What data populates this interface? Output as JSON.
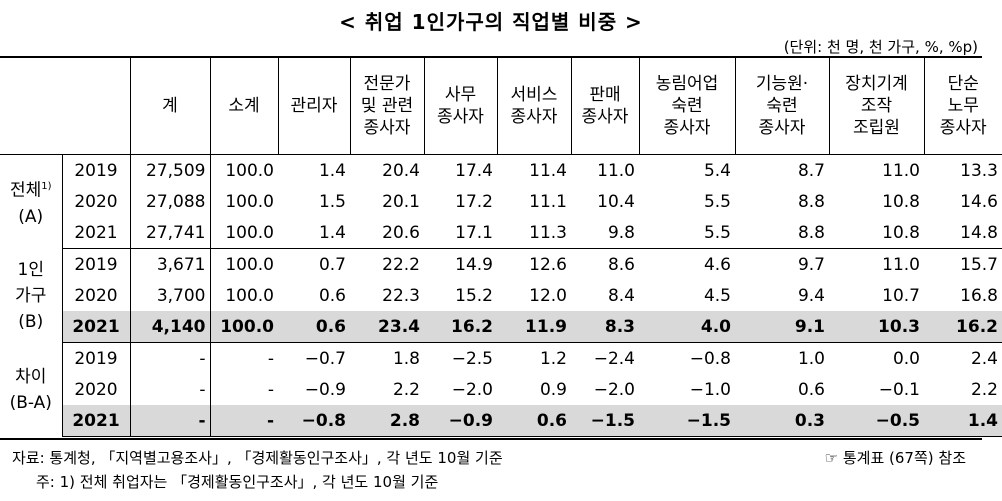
{
  "title": "< 취업 1인가구의 직업별 비중 >",
  "unit": "(단위: 천 명, 천 가구, %, %p)",
  "headers": [
    "계",
    "소계",
    "관리자",
    "전문가\n및 관련\n종사자",
    "사무\n종사자",
    "서비스\n종사자",
    "판매\n종사자",
    "농림어업\n숙련\n종사자",
    "기능원·\n숙련\n종사자",
    "장치기계\n조작\n조립원",
    "단순\n노무\n종사자"
  ],
  "groups": [
    {
      "label_line1": "전체",
      "label_sup": "1)",
      "label_line2": "(A)",
      "rows": [
        {
          "year": "2019",
          "values": [
            "27,509",
            "100.0",
            "1.4",
            "20.4",
            "17.4",
            "11.4",
            "11.0",
            "5.4",
            "8.7",
            "11.0",
            "13.3"
          ]
        },
        {
          "year": "2020",
          "values": [
            "27,088",
            "100.0",
            "1.5",
            "20.1",
            "17.2",
            "11.1",
            "10.4",
            "5.5",
            "8.8",
            "10.8",
            "14.6"
          ]
        },
        {
          "year": "2021",
          "values": [
            "27,741",
            "100.0",
            "1.4",
            "20.6",
            "17.1",
            "11.3",
            "9.8",
            "5.5",
            "8.8",
            "10.8",
            "14.8"
          ]
        }
      ]
    },
    {
      "label_line1": "1인",
      "label_line2": "가구",
      "label_line3": "(B)",
      "rows": [
        {
          "year": "2019",
          "values": [
            "3,671",
            "100.0",
            "0.7",
            "22.2",
            "14.9",
            "12.6",
            "8.6",
            "4.6",
            "9.7",
            "11.0",
            "15.7"
          ]
        },
        {
          "year": "2020",
          "values": [
            "3,700",
            "100.0",
            "0.6",
            "22.3",
            "15.2",
            "12.0",
            "8.4",
            "4.5",
            "9.4",
            "10.7",
            "16.8"
          ]
        },
        {
          "year": "2021",
          "values": [
            "4,140",
            "100.0",
            "0.6",
            "23.4",
            "16.2",
            "11.9",
            "8.3",
            "4.0",
            "9.1",
            "10.3",
            "16.2"
          ]
        }
      ]
    },
    {
      "label_line1": "차이",
      "label_line2": "(B-A)",
      "rows": [
        {
          "year": "2019",
          "values": [
            "-",
            "-",
            "−0.7",
            "1.8",
            "−2.5",
            "1.2",
            "−2.4",
            "−0.8",
            "1.0",
            "0.0",
            "2.4"
          ]
        },
        {
          "year": "2020",
          "values": [
            "-",
            "-",
            "−0.9",
            "2.2",
            "−2.0",
            "0.9",
            "−2.0",
            "−1.0",
            "0.6",
            "−0.1",
            "2.2"
          ]
        },
        {
          "year": "2021",
          "values": [
            "-",
            "-",
            "−0.8",
            "2.8",
            "−0.9",
            "0.6",
            "−1.5",
            "−1.5",
            "0.3",
            "−0.5",
            "1.4"
          ]
        }
      ]
    }
  ],
  "source": "자료: 통계청, 「지역별고용조사」, 「경제활동인구조사」, 각 년도 10월 기준",
  "reference": "☞ 통계표 (67쪽) 참조",
  "footnote": "주: 1) 전체 취업자는 「경제활동인구조사」, 각 년도 10월 기준"
}
